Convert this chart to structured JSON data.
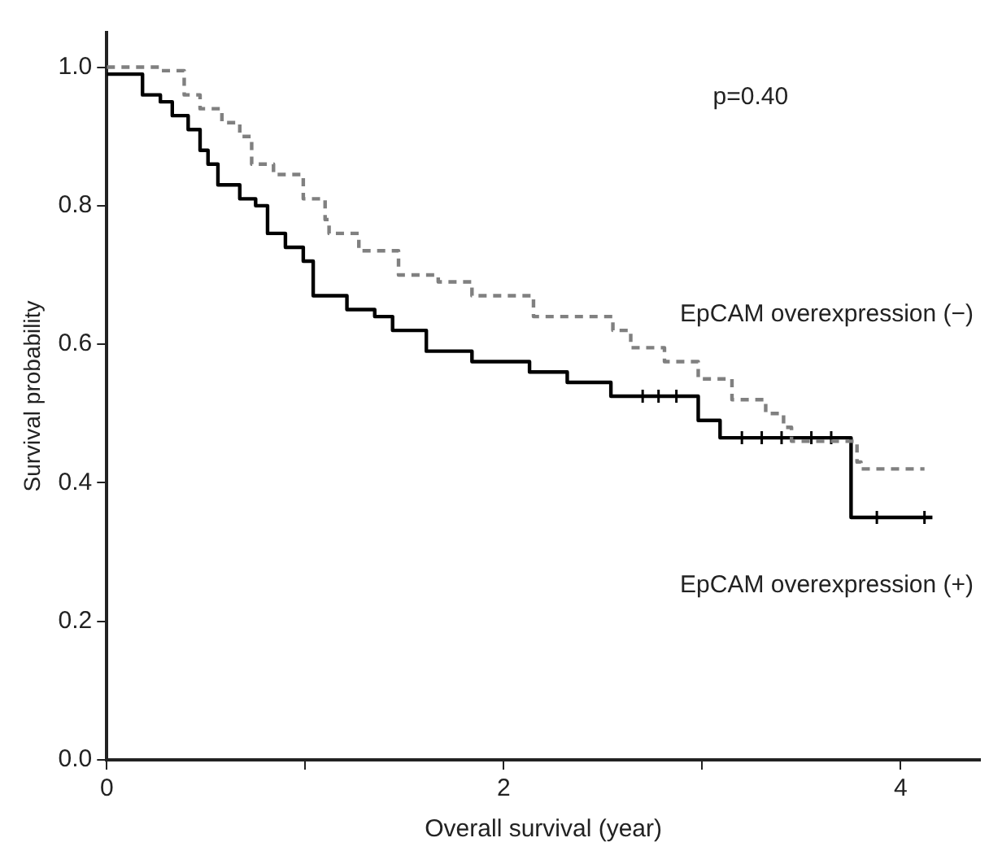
{
  "chart_data": {
    "type": "step",
    "xlabel": "Overall survival (year)",
    "ylabel": "Survival probability",
    "annotations": [
      "p=0.40"
    ],
    "xlim": [
      0,
      4.4
    ],
    "xticks": [
      0,
      {
        "value": 1,
        "label": null
      },
      2,
      {
        "value": 3,
        "label": null
      },
      4
    ],
    "ylim": [
      0,
      1.05
    ],
    "yticks": [
      {
        "value": 0,
        "label": "0.0"
      },
      0.2,
      0.4,
      0.6,
      0.8,
      {
        "value": 1,
        "label": "1.0"
      }
    ],
    "grid": false,
    "legend": false,
    "marker": "none",
    "series": [
      {
        "name": "EpCAM overexpression (−)",
        "color": "#808080",
        "line_style": "dashed",
        "x": [
          0,
          0.27,
          0.39,
          0.47,
          0.58,
          0.67,
          0.73,
          0.84,
          0.99,
          1.1,
          1.12,
          1.27,
          1.47,
          1.67,
          1.84,
          2.15,
          2.55,
          2.64,
          2.81,
          2.98,
          3.15,
          3.32,
          3.41,
          3.45,
          3.78,
          3.8,
          4.12
        ],
        "values": [
          1.0,
          0.995,
          0.96,
          0.94,
          0.92,
          0.9,
          0.86,
          0.845,
          0.81,
          0.78,
          0.76,
          0.735,
          0.7,
          0.69,
          0.67,
          0.64,
          0.62,
          0.595,
          0.575,
          0.55,
          0.52,
          0.5,
          0.48,
          0.46,
          0.43,
          0.42,
          0.42
        ]
      },
      {
        "name": "EpCAM overexpression (+)",
        "color": "#000000",
        "line_style": "solid",
        "x": [
          0,
          0.18,
          0.27,
          0.33,
          0.41,
          0.47,
          0.51,
          0.56,
          0.67,
          0.75,
          0.81,
          0.9,
          0.99,
          1.04,
          1.21,
          1.35,
          1.44,
          1.61,
          1.84,
          2.13,
          2.32,
          2.54,
          2.98,
          3.09,
          3.75,
          4.16
        ],
        "values": [
          0.99,
          0.96,
          0.95,
          0.93,
          0.91,
          0.88,
          0.86,
          0.83,
          0.81,
          0.8,
          0.76,
          0.74,
          0.72,
          0.67,
          0.65,
          0.64,
          0.62,
          0.59,
          0.575,
          0.56,
          0.545,
          0.525,
          0.49,
          0.465,
          0.35,
          0.35
        ]
      },
      {
        "type": "scatter",
        "marker": "cross",
        "color": "#000000",
        "x": [
          2.7,
          2.78,
          2.87,
          3.2,
          3.3,
          3.4,
          3.55,
          3.65,
          3.88,
          4.12
        ],
        "values": [
          0.525,
          0.525,
          0.525,
          0.465,
          0.465,
          0.465,
          0.465,
          0.465,
          0.35,
          0.35
        ]
      }
    ]
  }
}
